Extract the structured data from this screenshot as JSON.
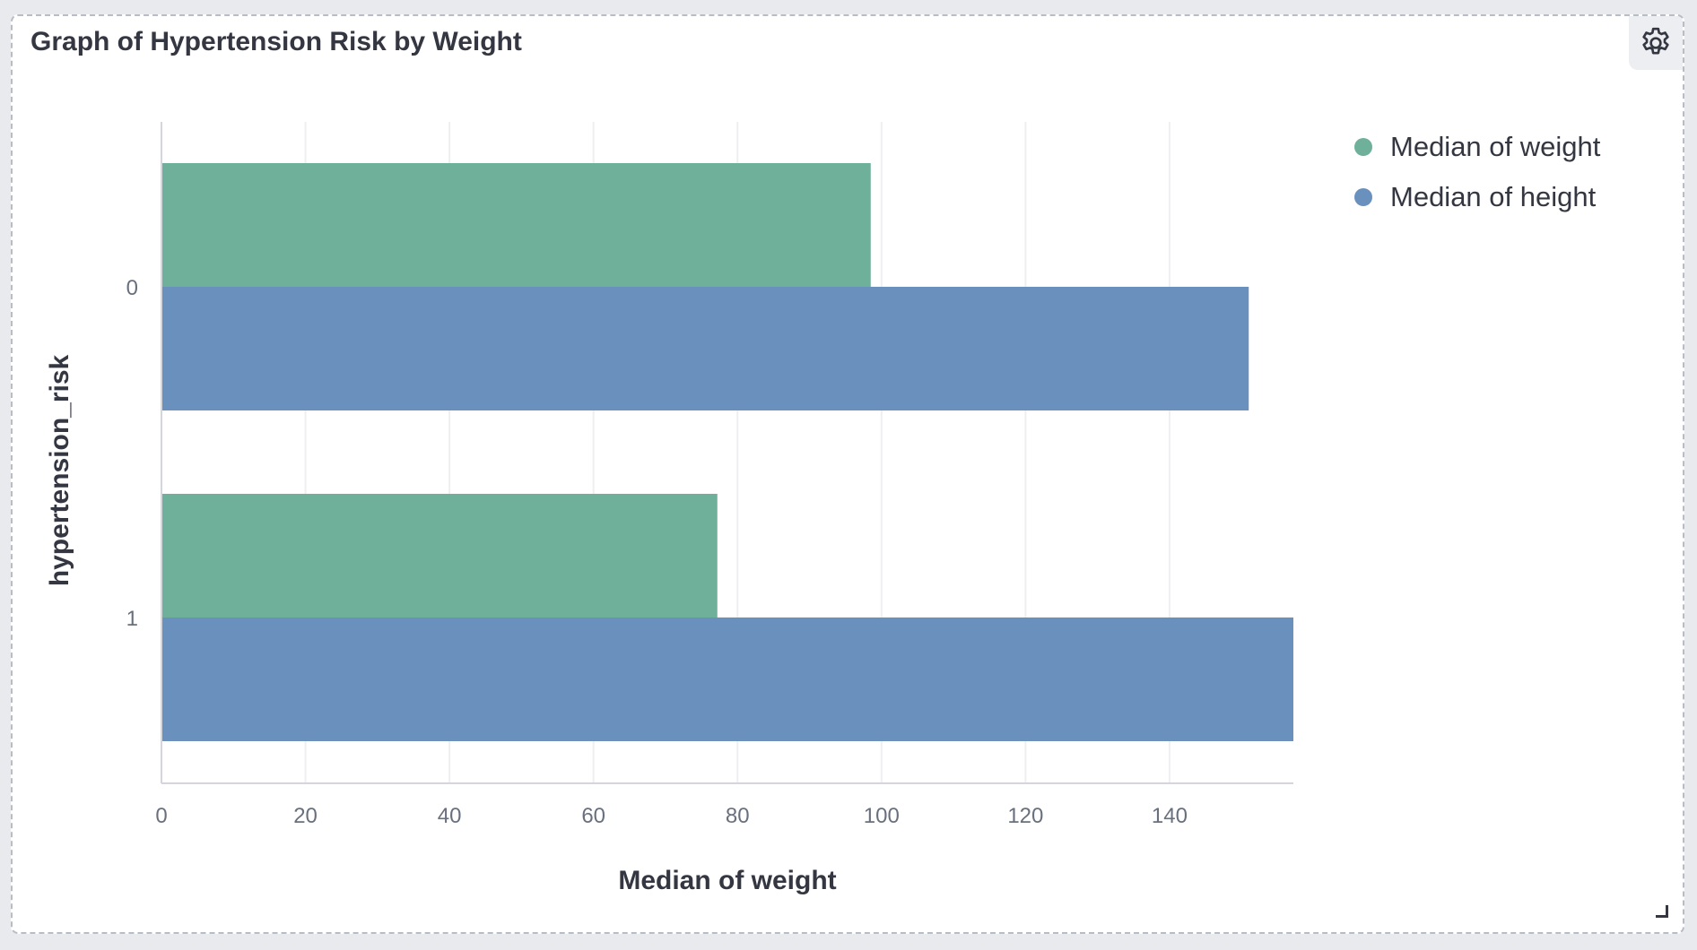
{
  "panel": {
    "title": "Graph of Hypertension Risk by Weight",
    "gear_icon": "gear-icon",
    "resize_icon": "resize-handle-icon"
  },
  "colors": {
    "weight": "#6eb09a",
    "height": "#6a91be",
    "grid": "#eeeff2",
    "axis": "#d3d6dc"
  },
  "chart_data": {
    "type": "bar",
    "orientation": "horizontal",
    "categories": [
      "0",
      "1"
    ],
    "series": [
      {
        "name": "Median of weight",
        "values": [
          98.5,
          77.2
        ]
      },
      {
        "name": "Median of height",
        "values": [
          151,
          157.2
        ]
      }
    ],
    "xlabel": "Median of weight",
    "ylabel": "hypertension_risk",
    "xticks": [
      0,
      20,
      40,
      60,
      80,
      100,
      120,
      140
    ],
    "xlim": [
      0,
      157.2
    ],
    "grid": true,
    "legend_position": "top-right"
  }
}
